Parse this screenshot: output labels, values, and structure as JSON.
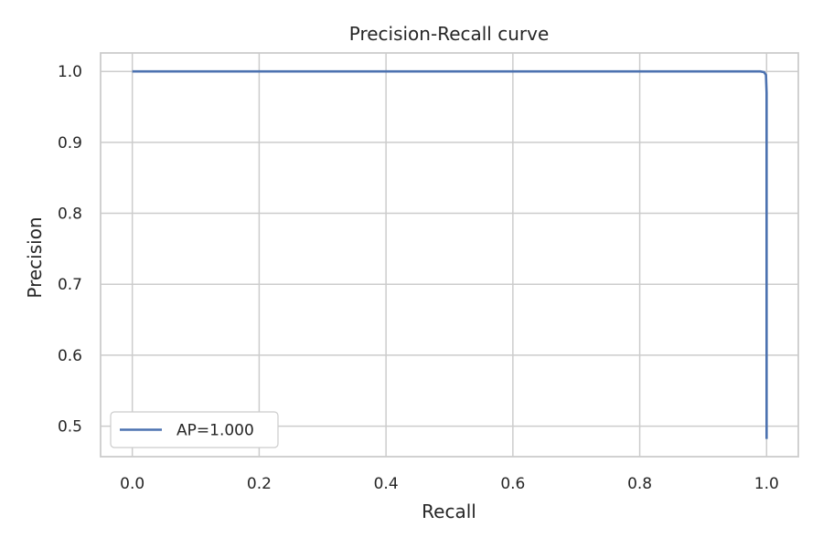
{
  "chart_data": {
    "type": "line",
    "title": "Precision-Recall curve",
    "xlabel": "Recall",
    "ylabel": "Precision",
    "xlim": [
      -0.05,
      1.05
    ],
    "ylim": [
      0.457,
      1.026
    ],
    "grid": true,
    "x_ticks": [
      0.0,
      0.2,
      0.4,
      0.6,
      0.8,
      1.0
    ],
    "x_tick_labels": [
      "0.0",
      "0.2",
      "0.4",
      "0.6",
      "0.8",
      "1.0"
    ],
    "y_ticks": [
      0.5,
      0.6,
      0.7,
      0.8,
      0.9,
      1.0
    ],
    "y_tick_labels": [
      "0.5",
      "0.6",
      "0.7",
      "0.8",
      "0.9",
      "1.0"
    ],
    "legend_position": "lower-left",
    "series": [
      {
        "name": "AP=1.000",
        "color": "#4c72b0",
        "x": [
          0.0,
          0.2,
          0.4,
          0.6,
          0.8,
          0.99,
          0.996,
          0.999,
          1.0,
          1.0,
          1.0
        ],
        "y": [
          1.0,
          1.0,
          1.0,
          1.0,
          1.0,
          1.0,
          0.999,
          0.995,
          0.97,
          0.7,
          0.482
        ]
      }
    ]
  }
}
